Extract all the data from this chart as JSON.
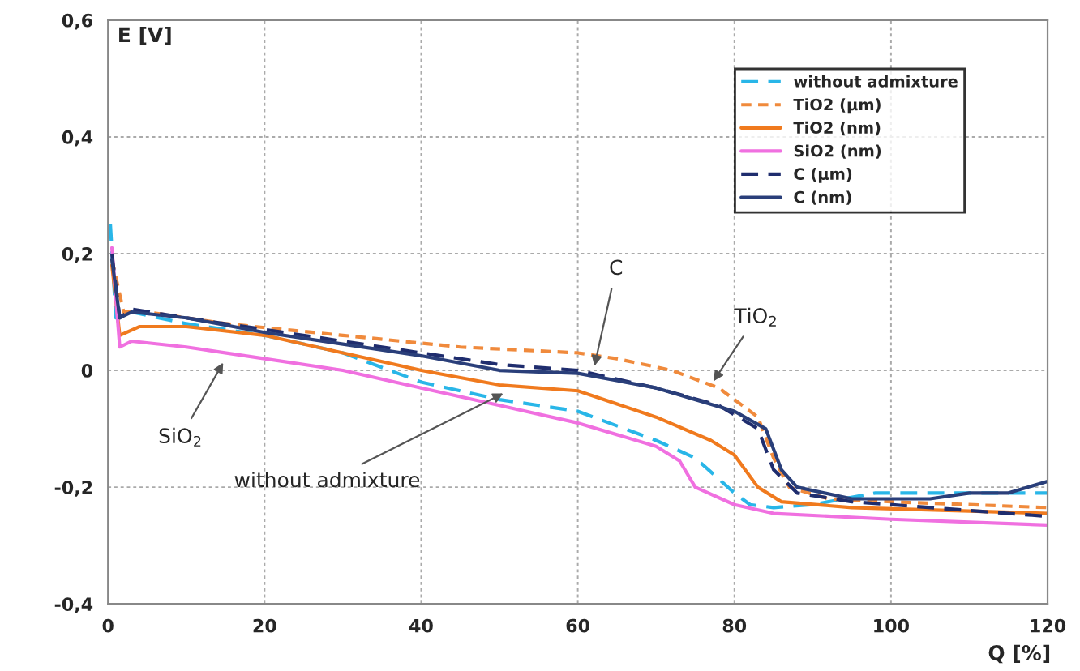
{
  "chart_data": {
    "type": "line",
    "xlabel": "Q [%]",
    "ylabel": "E [V]",
    "xlim": [
      0,
      120
    ],
    "xticks": [
      0,
      20,
      40,
      60,
      80,
      100,
      120
    ],
    "ylim": [
      -0.4,
      0.6
    ],
    "yticks": [
      {
        "value": -0.4,
        "label": "-0,4"
      },
      {
        "value": -0.2,
        "label": "-0,2"
      },
      {
        "value": 0,
        "label": "0"
      },
      {
        "value": 0.2,
        "label": "0,2"
      },
      {
        "value": 0.4,
        "label": "0,4"
      },
      {
        "value": 0.6,
        "label": "0,6"
      }
    ],
    "grid": true,
    "legend": "top right",
    "series": [
      {
        "name": "without admixture",
        "color": "#29b6e8",
        "line_style": "dashed",
        "x": [
          0.3,
          1,
          3,
          10,
          20,
          30,
          40,
          50,
          60,
          70,
          75,
          80,
          82,
          85,
          90,
          98,
          120
        ],
        "values": [
          0.25,
          0.09,
          0.1,
          0.08,
          0.06,
          0.03,
          -0.02,
          -0.05,
          -0.07,
          -0.12,
          -0.15,
          -0.21,
          -0.23,
          -0.235,
          -0.23,
          -0.21,
          -0.21
        ]
      },
      {
        "name": "TiO2 (µm)",
        "color": "#f08a3c",
        "line_style": "dotted",
        "x": [
          0.5,
          2,
          5,
          15,
          30,
          45,
          60,
          65,
          72,
          78,
          83,
          85,
          87,
          92,
          100,
          120
        ],
        "values": [
          0.19,
          0.1,
          0.1,
          0.08,
          0.06,
          0.04,
          0.03,
          0.02,
          0.0,
          -0.03,
          -0.08,
          -0.15,
          -0.2,
          -0.22,
          -0.225,
          -0.235
        ]
      },
      {
        "name": "TiO2 (nm)",
        "color": "#f07a1e",
        "line_style": "solid",
        "x": [
          0.5,
          1.5,
          4,
          10,
          20,
          30,
          40,
          50,
          60,
          70,
          77,
          80,
          83,
          86,
          95,
          120
        ],
        "values": [
          0.18,
          0.06,
          0.075,
          0.075,
          0.06,
          0.03,
          0.0,
          -0.025,
          -0.035,
          -0.08,
          -0.12,
          -0.145,
          -0.2,
          -0.225,
          -0.235,
          -0.245
        ]
      },
      {
        "name": "SiO2 (nm)",
        "color": "#f070e0",
        "line_style": "solid",
        "x": [
          0.5,
          1.5,
          3,
          10,
          20,
          30,
          40,
          50,
          60,
          70,
          73,
          75,
          80,
          85,
          100,
          120
        ],
        "values": [
          0.21,
          0.04,
          0.05,
          0.04,
          0.02,
          0.0,
          -0.03,
          -0.06,
          -0.09,
          -0.13,
          -0.155,
          -0.2,
          -0.23,
          -0.245,
          -0.255,
          -0.265
        ]
      },
      {
        "name": "C (µm)",
        "color": "#1f2d6e",
        "line_style": "dashed",
        "x": [
          0.5,
          1.5,
          3,
          10,
          20,
          30,
          40,
          50,
          60,
          70,
          78,
          83,
          85,
          88,
          95,
          110,
          120
        ],
        "values": [
          0.2,
          0.09,
          0.105,
          0.09,
          0.07,
          0.05,
          0.03,
          0.01,
          0.0,
          -0.03,
          -0.06,
          -0.1,
          -0.17,
          -0.21,
          -0.225,
          -0.24,
          -0.25
        ]
      },
      {
        "name": "C (nm)",
        "color": "#2a3f7a",
        "line_style": "solid",
        "x": [
          0.5,
          1.5,
          3,
          10,
          20,
          30,
          40,
          50,
          60,
          70,
          80,
          84,
          86,
          88,
          95,
          105,
          110,
          115,
          120
        ],
        "values": [
          0.19,
          0.09,
          0.1,
          0.09,
          0.065,
          0.045,
          0.025,
          0.0,
          -0.005,
          -0.03,
          -0.07,
          -0.1,
          -0.17,
          -0.2,
          -0.22,
          -0.22,
          -0.21,
          -0.21,
          -0.19
        ]
      }
    ],
    "annotations": [
      {
        "text": "C",
        "x": 62,
        "y": 0.0
      },
      {
        "text": "TiO$_{2}$",
        "x": 77,
        "y": -0.025
      },
      {
        "text": "SiO$_{2}$",
        "x": 15,
        "y": 0.02
      },
      {
        "text": "without admixture",
        "x": 51,
        "y": -0.036
      }
    ]
  }
}
